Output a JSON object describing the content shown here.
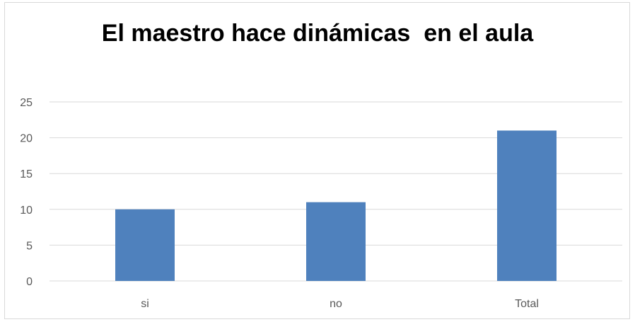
{
  "chart_data": {
    "type": "bar",
    "title": "El maestro hace dinámicas  en el aula",
    "categories": [
      "si",
      "no",
      "Total"
    ],
    "values": [
      10,
      11,
      21
    ],
    "xlabel": "",
    "ylabel": "",
    "ylim": [
      0,
      25
    ],
    "yticks": [
      0,
      5,
      10,
      15,
      20,
      25
    ],
    "grid": true,
    "legend": "none",
    "bar_color": "#4f81bd",
    "grid_color": "#d9d9d9",
    "tick_label_color": "#595959"
  }
}
